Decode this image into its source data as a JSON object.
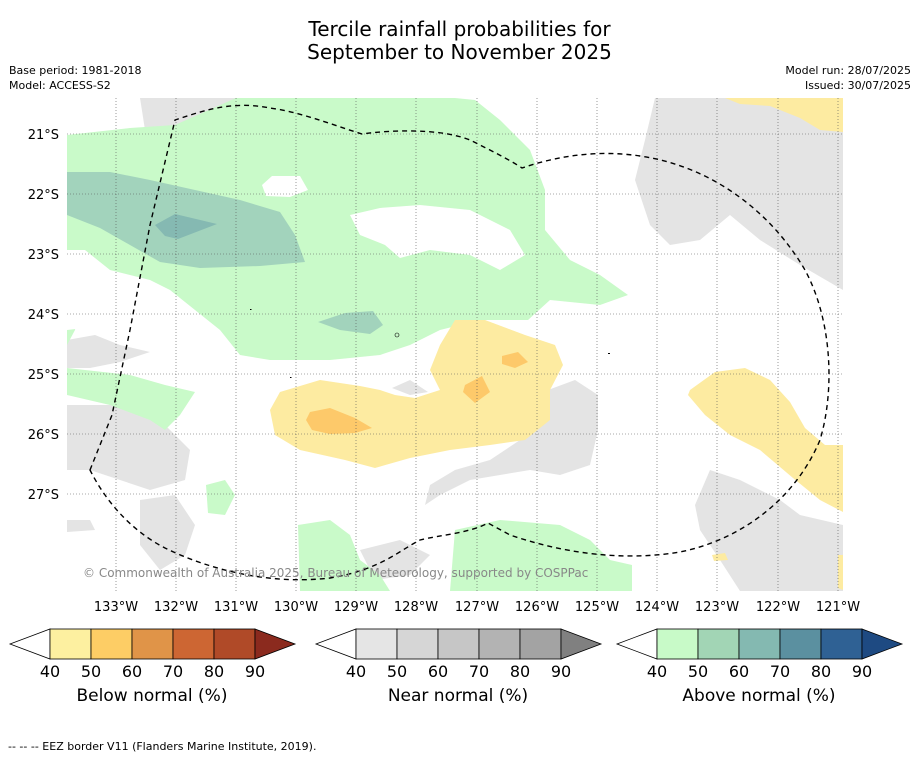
{
  "title_line1": "Tercile rainfall probabilities for",
  "title_line2": "September to November 2025",
  "base_period": "Base period: 1981-2018",
  "model": "Model: ACCESS-S2",
  "model_run": "Model run: 28/07/2025",
  "issued": "Issued: 30/07/2025",
  "map": {
    "lat_labels": [
      "21°S",
      "22°S",
      "23°S",
      "24°S",
      "25°S",
      "26°S",
      "27°S"
    ],
    "lon_labels": [
      "133°W",
      "132°W",
      "131°W",
      "130°W",
      "129°W",
      "128°W",
      "127°W",
      "126°W",
      "125°W",
      "124°W",
      "123°W",
      "122°W",
      "121°W"
    ],
    "copyright": "© Commonwealth of Australia 2025, Bureau of Meteorology, supported by COSPPac",
    "colors": {
      "near_40": "#e4e4e4",
      "above_40": "#c9fac9",
      "above_50": "#a2d3bc",
      "above_60": "#85b9b2",
      "below_40": "#fdeba1",
      "below_50": "#fdc96a"
    }
  },
  "colorbars": [
    {
      "label": "Below normal (%)",
      "ticks": [
        "40",
        "50",
        "60",
        "70",
        "80",
        "90"
      ],
      "colors": [
        "#fdf0a0",
        "#fdcd65",
        "#e09448",
        "#cd6633",
        "#b04a28",
        "#8b2a1e"
      ]
    },
    {
      "label": "Near normal (%)",
      "ticks": [
        "40",
        "50",
        "60",
        "70",
        "80",
        "90"
      ],
      "colors": [
        "#e5e5e5",
        "#d6d6d6",
        "#c6c6c6",
        "#b3b3b3",
        "#a3a3a3",
        "#808080"
      ]
    },
    {
      "label": "Above normal (%)",
      "ticks": [
        "40",
        "50",
        "60",
        "70",
        "80",
        "90"
      ],
      "colors": [
        "#c8fac8",
        "#a2d5b5",
        "#84b9b1",
        "#5b90a0",
        "#2f6194",
        "#1e4a82"
      ]
    }
  ],
  "footer": "--  --  -- EEZ border V11 (Flanders Marine Institute, 2019)."
}
